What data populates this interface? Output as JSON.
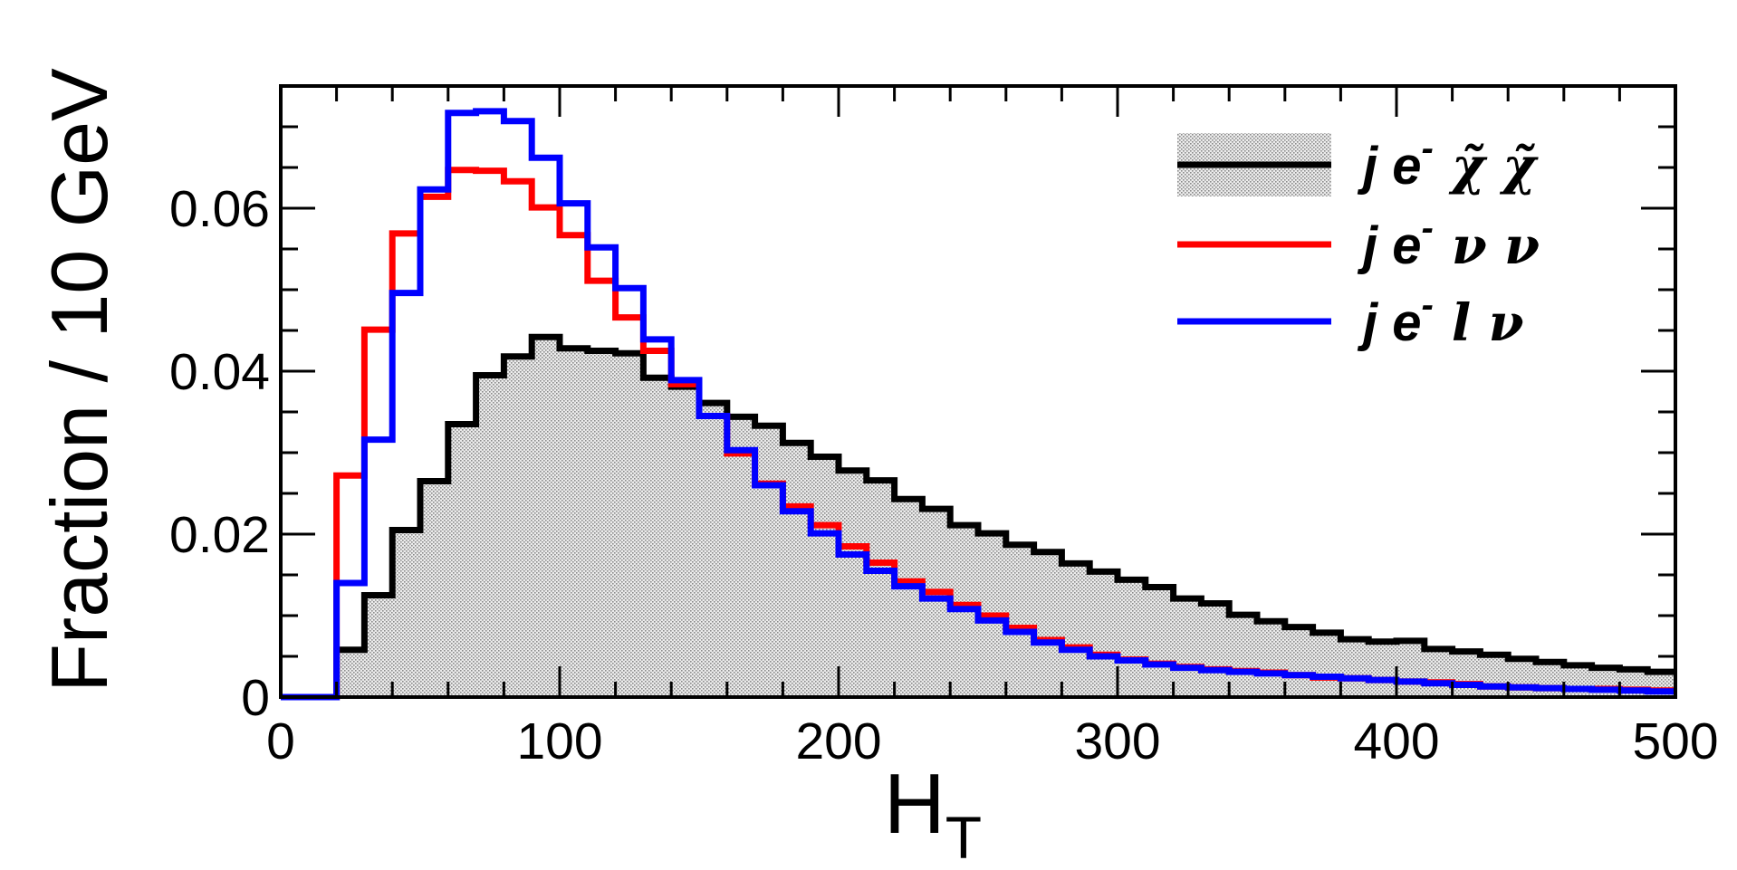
{
  "chart_data": {
    "type": "histogram",
    "xlabel": "H",
    "xlabel_sub": "T",
    "ylabel": "Fraction / 10 GeV",
    "xlim": [
      0,
      500
    ],
    "ylim": [
      0,
      0.075
    ],
    "bin_width": 10,
    "x_ticks": [
      0,
      100,
      200,
      300,
      400,
      500
    ],
    "x_tick_labels": [
      "0",
      "100",
      "200",
      "300",
      "400",
      "500"
    ],
    "y_ticks": [
      0,
      0.02,
      0.04,
      0.06
    ],
    "y_tick_labels": [
      "0",
      "0.02",
      "0.04",
      "0.06"
    ],
    "legend_position": "top-right",
    "series": [
      {
        "name": "j e- χ̃ χ̃",
        "legend_main": "j e",
        "legend_sup": "-",
        "legend_rest": "χ̃  χ̃",
        "color": "#000000",
        "filled": true,
        "fill": "#d9d9d9",
        "bin_edges_start": 0,
        "values": [
          0,
          0,
          0.0058,
          0.0125,
          0.0205,
          0.0265,
          0.0335,
          0.0395,
          0.0418,
          0.0442,
          0.0428,
          0.0425,
          0.0422,
          0.0392,
          0.0381,
          0.0361,
          0.0344,
          0.0333,
          0.0312,
          0.0295,
          0.0278,
          0.0266,
          0.0243,
          0.0231,
          0.0211,
          0.0201,
          0.0187,
          0.0178,
          0.0164,
          0.0154,
          0.0144,
          0.0135,
          0.0121,
          0.0115,
          0.0101,
          0.0093,
          0.0086,
          0.0079,
          0.0071,
          0.0068,
          0.0069,
          0.0059,
          0.0056,
          0.0052,
          0.0047,
          0.0043,
          0.0039,
          0.0036,
          0.0034,
          0.0031
        ]
      },
      {
        "name": "j e- ν ν",
        "legend_main": "j e",
        "legend_sup": "-",
        "legend_rest": "ν  ν",
        "color": "#ff0000",
        "filled": false,
        "bin_edges_start": 0,
        "values": [
          0,
          0,
          0.0272,
          0.0451,
          0.0569,
          0.0614,
          0.0647,
          0.0646,
          0.0633,
          0.0601,
          0.0567,
          0.0511,
          0.0466,
          0.0425,
          0.0384,
          0.0345,
          0.0299,
          0.0262,
          0.0234,
          0.0211,
          0.0185,
          0.0165,
          0.0142,
          0.0129,
          0.0113,
          0.01,
          0.0085,
          0.007,
          0.0061,
          0.0052,
          0.0046,
          0.0041,
          0.0037,
          0.0034,
          0.0032,
          0.003,
          0.0027,
          0.0024,
          0.0023,
          0.0021,
          0.0019,
          0.0018,
          0.0016,
          0.0013,
          0.0012,
          0.0011,
          0.001,
          0.001,
          0.0009,
          0.0008
        ]
      },
      {
        "name": "j e- l ν",
        "legend_main": "j e",
        "legend_sup": "-",
        "legend_rest": "l  ν",
        "color": "#0000ff",
        "filled": false,
        "bin_edges_start": 0,
        "values": [
          0,
          0,
          0.014,
          0.0316,
          0.0496,
          0.0623,
          0.0717,
          0.0719,
          0.0707,
          0.0662,
          0.0606,
          0.0552,
          0.0502,
          0.0439,
          0.0389,
          0.0345,
          0.0303,
          0.026,
          0.0228,
          0.0201,
          0.0175,
          0.0155,
          0.0136,
          0.0121,
          0.0108,
          0.0094,
          0.008,
          0.0067,
          0.0058,
          0.005,
          0.0045,
          0.004,
          0.0036,
          0.0033,
          0.0031,
          0.0029,
          0.0027,
          0.0025,
          0.0023,
          0.0021,
          0.0019,
          0.0017,
          0.0015,
          0.0013,
          0.0012,
          0.0011,
          0.001,
          0.0009,
          0.0008,
          0.0007
        ]
      }
    ]
  }
}
